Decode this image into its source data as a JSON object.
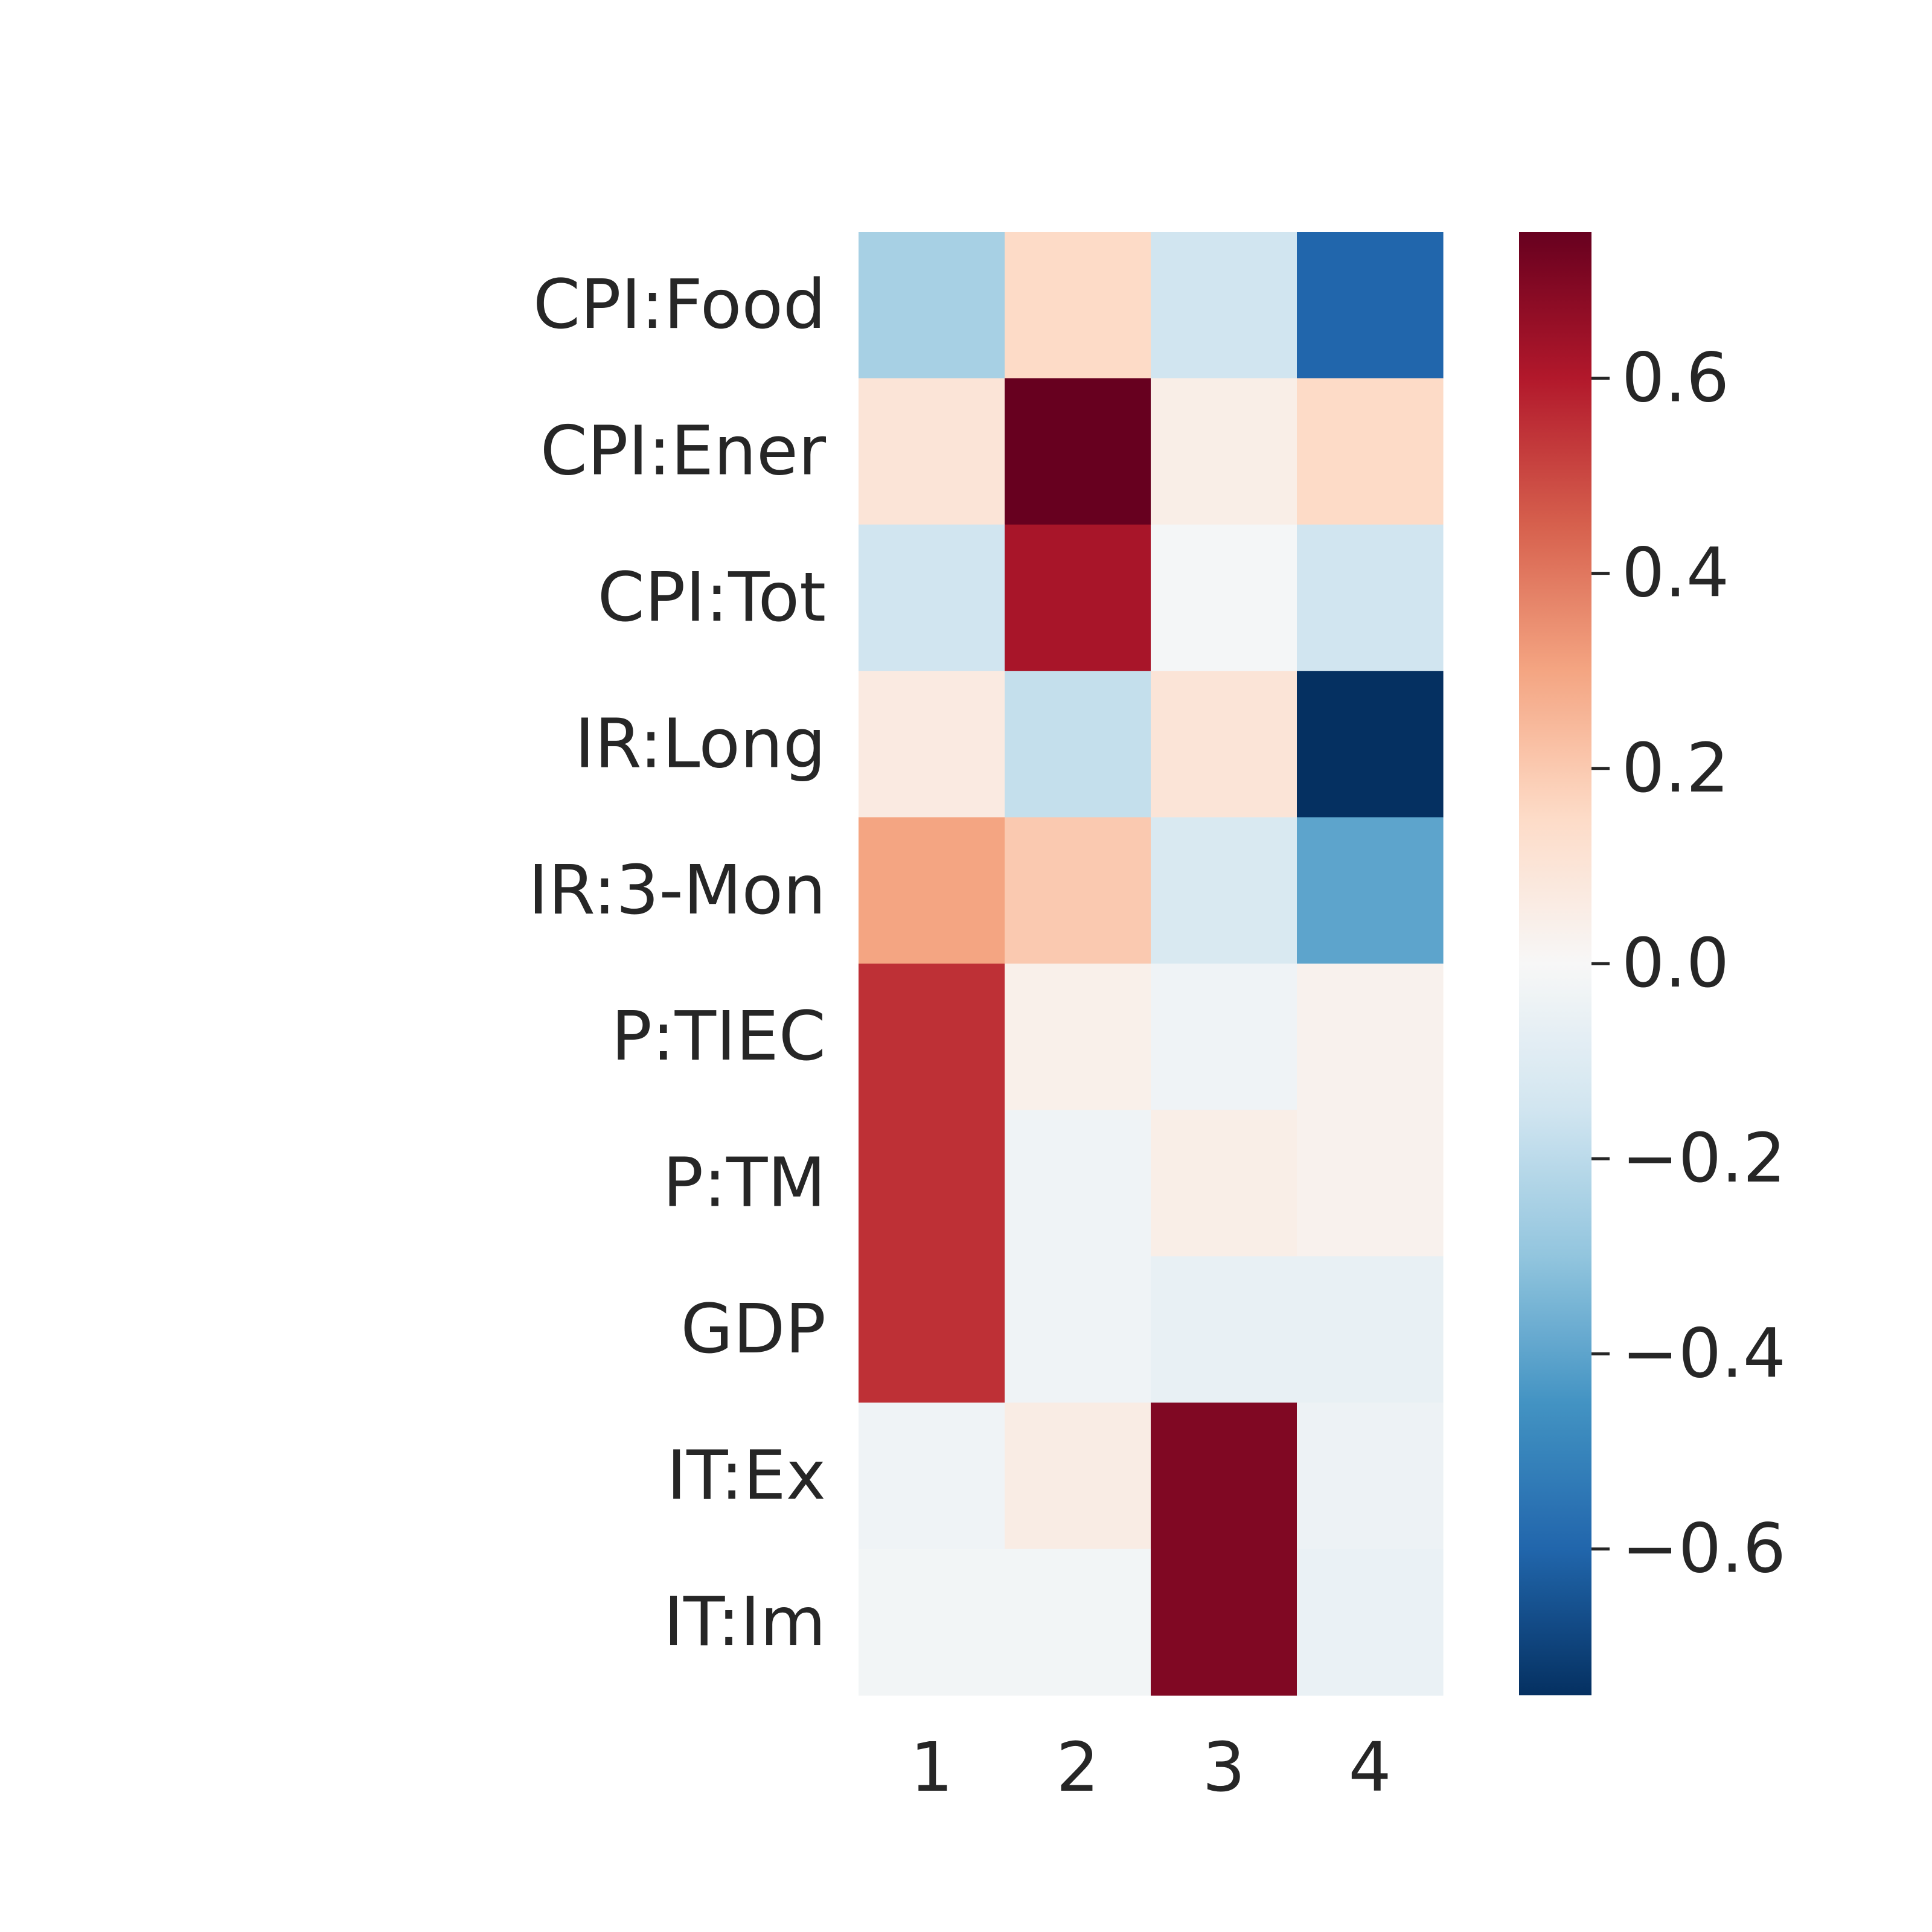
{
  "chart_data": {
    "type": "heatmap",
    "title": "",
    "xlabel": "",
    "ylabel": "",
    "rows": [
      "CPI:Food",
      "CPI:Ener",
      "CPI:Tot",
      "IR:Long",
      "IR:3-Mon",
      "P:TIEC",
      "P:TM",
      "GDP",
      "IT:Ex",
      "IT:Im"
    ],
    "columns": [
      "1",
      "2",
      "3",
      "4"
    ],
    "values": [
      [
        -0.25,
        0.15,
        -0.15,
        -0.6
      ],
      [
        0.1,
        0.75,
        0.05,
        0.15
      ],
      [
        -0.15,
        0.62,
        -0.01,
        -0.15
      ],
      [
        0.07,
        -0.18,
        0.1,
        -0.75
      ],
      [
        0.3,
        0.2,
        -0.12,
        -0.4
      ],
      [
        0.55,
        0.04,
        -0.03,
        0.03
      ],
      [
        0.55,
        -0.03,
        0.05,
        0.03
      ],
      [
        0.55,
        -0.03,
        -0.06,
        -0.06
      ],
      [
        -0.03,
        0.06,
        0.7,
        -0.04
      ],
      [
        -0.02,
        -0.02,
        0.7,
        -0.05
      ]
    ],
    "colorbar": {
      "colormap": "RdBu_r",
      "vmin": -0.75,
      "vmax": 0.75,
      "ticks": [
        0.6,
        0.4,
        0.2,
        0.0,
        -0.2,
        -0.4,
        -0.6
      ],
      "tick_labels": [
        "0.6",
        "0.4",
        "0.2",
        "0.0",
        "−0.2",
        "−0.4",
        "−0.6"
      ]
    }
  }
}
